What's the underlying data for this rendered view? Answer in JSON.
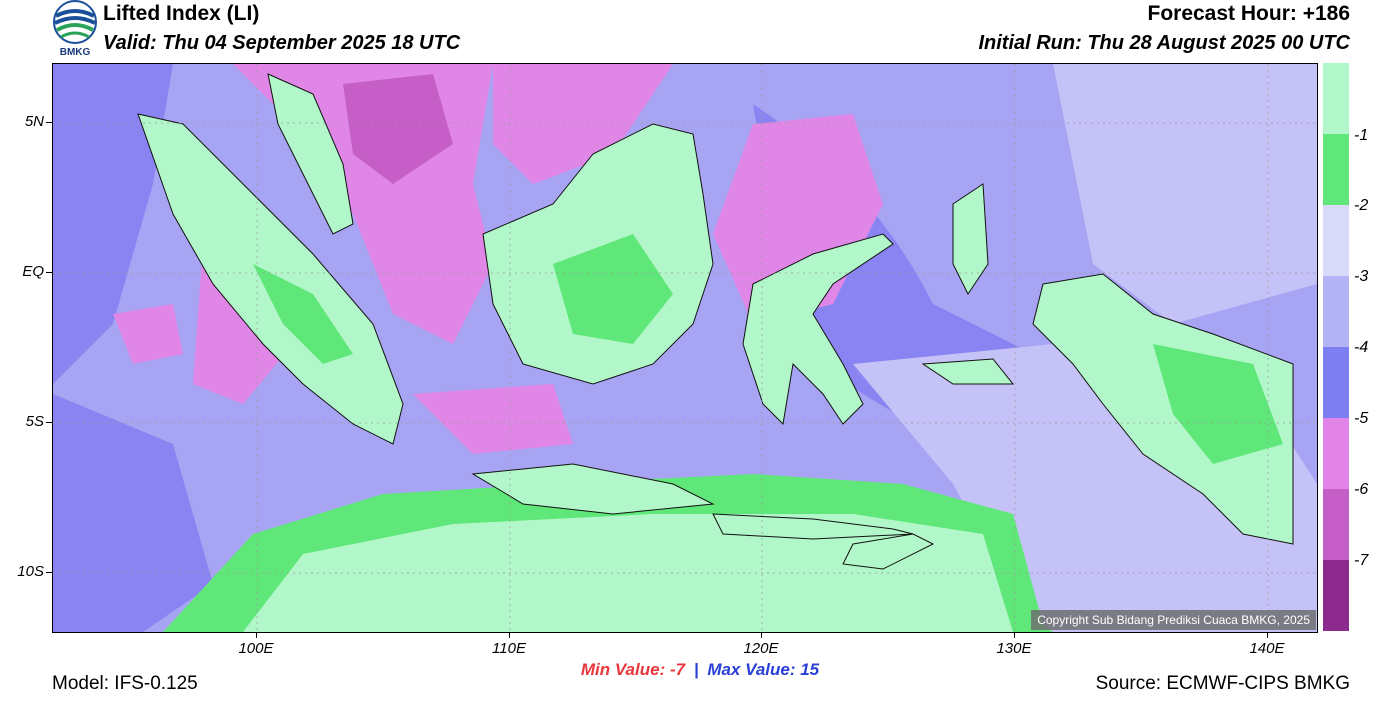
{
  "header": {
    "title": "Lifted Index (LI)",
    "valid": "Valid: Thu 04 September 2025 18 UTC",
    "forecast_hour": "Forecast Hour: +186",
    "initial_run": "Initial Run: Thu 28 August 2025 00 UTC",
    "logo_text": "BMKG"
  },
  "axes": {
    "lat_labels": [
      "5N",
      "EQ",
      "5S",
      "10S"
    ],
    "lon_labels": [
      "100E",
      "110E",
      "120E",
      "130E",
      "140E"
    ]
  },
  "legend": {
    "colors": [
      "#b2f7c9",
      "#5fe879",
      "#d9d9f8",
      "#b3b3f5",
      "#7f7ff4",
      "#e384e8",
      "#c55fc7",
      "#8e2a8e"
    ],
    "labels": [
      "-1",
      "-2",
      "-3",
      "-4",
      "-5",
      "-6",
      "-7"
    ]
  },
  "copyright": "Copyright Sub Bidang Prediksi Cuaca BMKG, 2025",
  "footer": {
    "min_label": "Min Value:  -7",
    "separator": "|",
    "max_label": "Max Value:  15",
    "model": "Model: IFS-0.125",
    "source": "Source: ECMWF-CIPS BMKG"
  },
  "colors": {
    "min_color": "#e8383d",
    "max_color": "#2a3fd6"
  }
}
